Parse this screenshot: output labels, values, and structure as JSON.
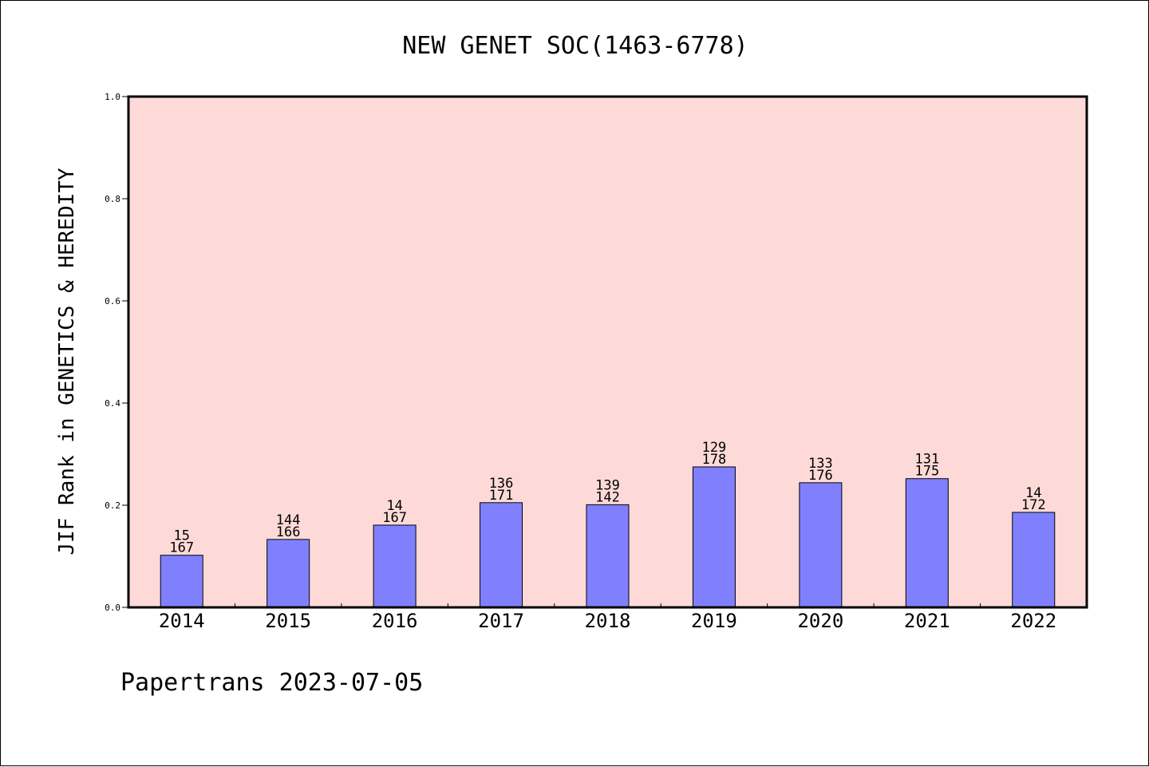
{
  "chart_data": {
    "type": "bar",
    "title": "NEW GENET SOC(1463-6778)",
    "xlabel": "",
    "ylabel": "JIF Rank in GENETICS & HEREDITY",
    "ylim": [
      0,
      1.0
    ],
    "yticks": [
      "0.0",
      "0.2",
      "0.4",
      "0.6",
      "0.8",
      "1.0"
    ],
    "grid": false,
    "categories": [
      "2014",
      "2015",
      "2016",
      "2017",
      "2018",
      "2019",
      "2020",
      "2021",
      "2022"
    ],
    "values": [
      0.102,
      0.133,
      0.161,
      0.205,
      0.201,
      0.275,
      0.244,
      0.252,
      0.186
    ],
    "labels": [
      {
        "rank": "15",
        "total": "167"
      },
      {
        "rank": "144",
        "total": "166"
      },
      {
        "rank": "14",
        "total": "167"
      },
      {
        "rank": "136",
        "total": "171"
      },
      {
        "rank": "139",
        "total": "142"
      },
      {
        "rank": "129",
        "total": "178"
      },
      {
        "rank": "133",
        "total": "176"
      },
      {
        "rank": "131",
        "total": "175"
      },
      {
        "rank": "14",
        "total": "172"
      }
    ],
    "colors": {
      "plot_background": "#fddad7",
      "bar_fill": "#8080ff",
      "bar_edge": "#000000"
    }
  },
  "footer": "Papertrans 2023-07-05"
}
